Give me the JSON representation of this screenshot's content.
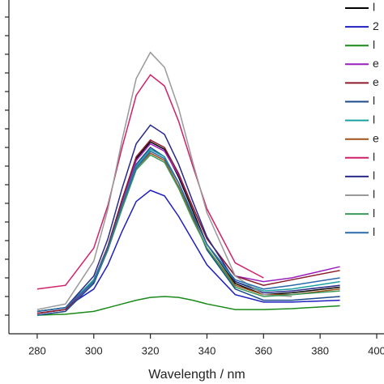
{
  "chart_data": {
    "type": "line",
    "x_label": "Wavelength / nm",
    "x": [
      280,
      290,
      300,
      305,
      310,
      315,
      320,
      325,
      330,
      335,
      340,
      350,
      360,
      370,
      387
    ],
    "xlim": [
      270,
      400
    ],
    "xticks": [
      280,
      300,
      320,
      340,
      360,
      380,
      400
    ],
    "ylim": [
      0,
      18
    ],
    "yticks": [
      1,
      2,
      3,
      4,
      5,
      6,
      7,
      8,
      9,
      10,
      11,
      12,
      13,
      14,
      15,
      16,
      17
    ],
    "series": [
      {
        "name": "l",
        "color": "#000000",
        "values": [
          1.1,
          1.3,
          2.8,
          4.7,
          7.2,
          9.4,
          10.3,
          9.9,
          8.4,
          6.6,
          4.8,
          2.7,
          2.1,
          2.2,
          2.5
        ]
      },
      {
        "name": "2",
        "color": "#1f1fc0",
        "values": [
          1.2,
          1.4,
          2.4,
          3.7,
          5.5,
          7.1,
          7.7,
          7.4,
          6.3,
          5.0,
          3.7,
          2.1,
          1.7,
          1.7,
          1.8
        ]
      },
      {
        "name": "l",
        "color": "#1a8a1a",
        "values": [
          1.0,
          1.05,
          1.2,
          1.4,
          1.6,
          1.8,
          1.95,
          2.0,
          1.95,
          1.8,
          1.6,
          1.3,
          1.3,
          1.35,
          1.5
        ]
      },
      {
        "name": "e",
        "color": "#9b1fc0",
        "values": [
          1.1,
          1.3,
          2.8,
          4.6,
          7.1,
          9.3,
          10.2,
          9.8,
          8.5,
          6.8,
          5.1,
          3.1,
          2.8,
          3.0,
          3.6
        ]
      },
      {
        "name": "e",
        "color": "#8b1a2a",
        "values": [
          1.1,
          1.3,
          2.9,
          4.7,
          7.2,
          9.5,
          10.4,
          10.0,
          8.6,
          6.8,
          5.1,
          3.1,
          2.6,
          2.9,
          3.4
        ]
      },
      {
        "name": "l",
        "color": "#1a4a8a",
        "values": [
          1.0,
          1.2,
          2.7,
          4.5,
          6.9,
          9.1,
          10.0,
          9.5,
          8.1,
          6.3,
          4.5,
          2.4,
          1.8,
          1.8,
          2.0
        ]
      },
      {
        "name": "l",
        "color": "#1aa0a0",
        "values": [
          1.2,
          1.4,
          2.9,
          4.6,
          6.9,
          9.0,
          9.9,
          9.5,
          8.1,
          6.4,
          4.8,
          2.8,
          2.3,
          2.4,
          2.8
        ]
      },
      {
        "name": "e",
        "color": "#a0521a",
        "values": [
          1.2,
          1.4,
          2.8,
          4.5,
          6.8,
          8.9,
          9.7,
          9.3,
          7.9,
          6.2,
          4.6,
          2.6,
          2.1,
          2.1,
          2.4
        ]
      },
      {
        "name": "l",
        "color": "#d0206a",
        "values": [
          2.4,
          2.6,
          4.6,
          6.9,
          10.0,
          12.8,
          13.9,
          13.3,
          11.4,
          9.0,
          6.7,
          3.8,
          3.0,
          null,
          null
        ]
      },
      {
        "name": "l",
        "color": "#2a2a8a",
        "values": [
          1.2,
          1.4,
          3.1,
          5.1,
          7.8,
          10.2,
          11.2,
          10.7,
          9.1,
          7.1,
          5.2,
          2.8,
          2.2,
          2.3,
          2.6
        ]
      },
      {
        "name": "l",
        "color": "#999999",
        "values": [
          1.3,
          1.6,
          3.9,
          6.7,
          10.4,
          13.7,
          15.1,
          14.3,
          12.1,
          9.2,
          6.5,
          3.1,
          2.1,
          2.0,
          null
        ]
      },
      {
        "name": "l",
        "color": "#3a9a5a",
        "values": [
          1.2,
          1.4,
          2.8,
          4.5,
          6.7,
          8.8,
          9.6,
          9.2,
          7.8,
          6.1,
          4.6,
          2.5,
          2.0,
          2.1,
          2.3
        ]
      },
      {
        "name": "l",
        "color": "#2a6aaa",
        "values": [
          1.2,
          1.4,
          2.8,
          4.6,
          6.9,
          8.9,
          9.8,
          9.4,
          8.1,
          6.4,
          4.8,
          2.9,
          2.4,
          2.6,
          3.0
        ]
      }
    ]
  }
}
